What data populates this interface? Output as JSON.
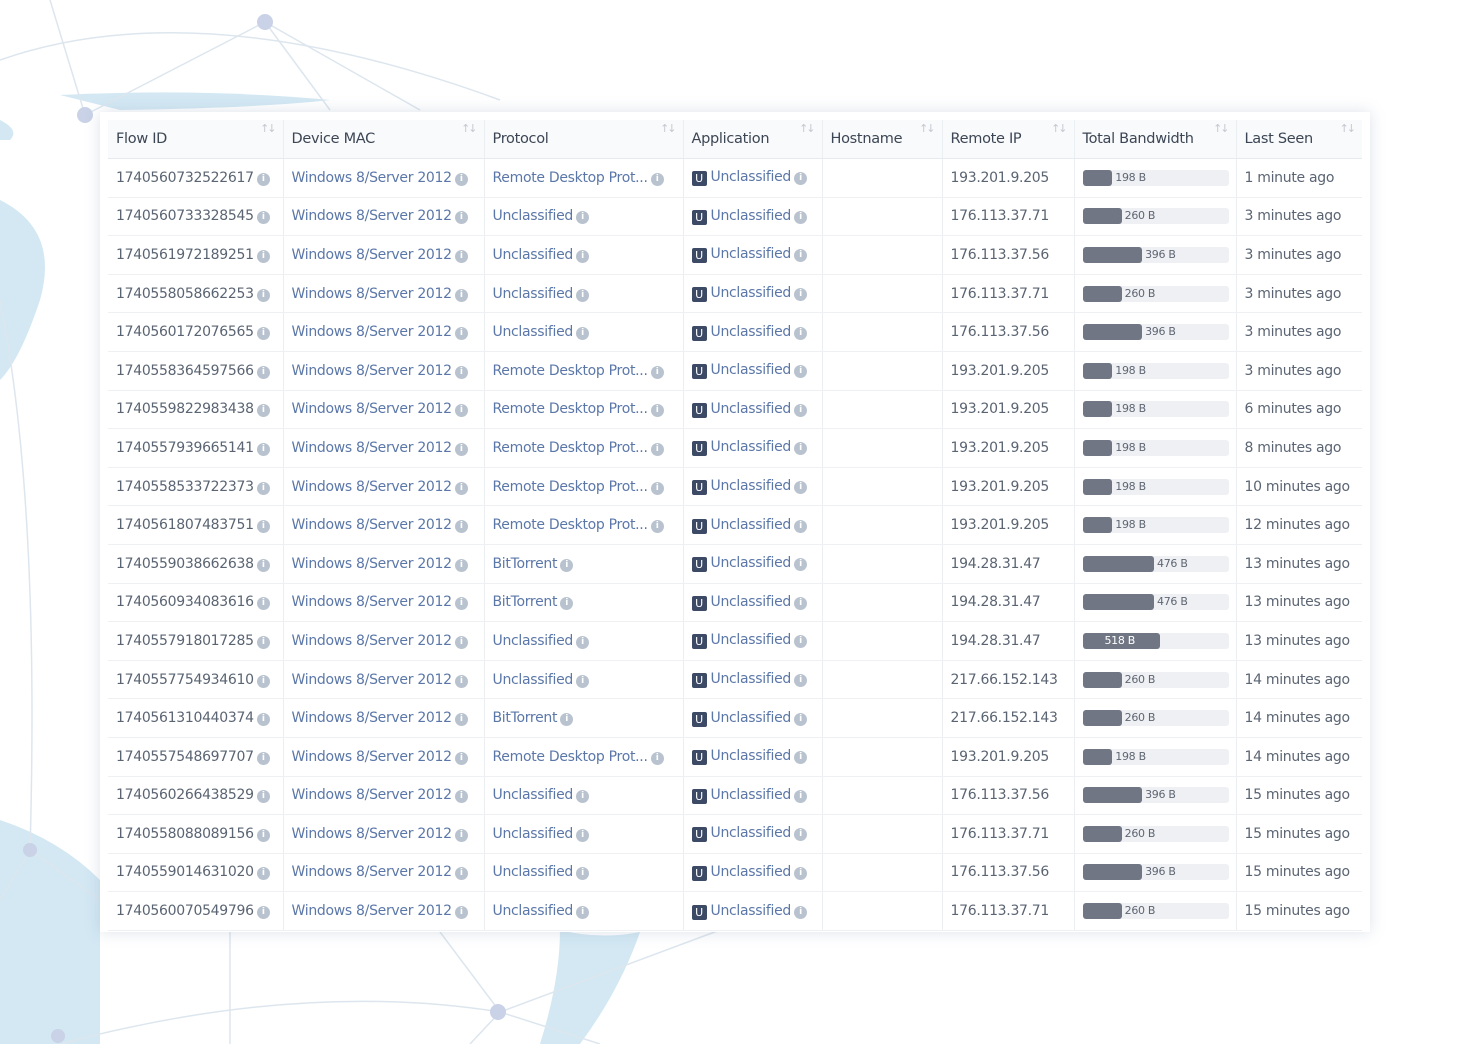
{
  "colors": {
    "link": "#5b77a8",
    "bar": "#707684",
    "app_badge": "#3d4a66"
  },
  "columns": [
    {
      "label": "Flow ID",
      "sort_icon": "sort-icon"
    },
    {
      "label": "Device MAC",
      "sort_icon": "sort-icon"
    },
    {
      "label": "Protocol",
      "sort_icon": "sort-icon"
    },
    {
      "label": "Application",
      "sort_icon": "sort-icon"
    },
    {
      "label": "Hostname",
      "sort_icon": "sort-icon"
    },
    {
      "label": "Remote IP",
      "sort_icon": "sort-icon"
    },
    {
      "label": "Total Bandwidth",
      "sort_icon": "sort-icon"
    },
    {
      "label": "Last Seen",
      "sort_icon": "sort-desc-icon"
    }
  ],
  "app_badge": "U",
  "rows": [
    {
      "flow_id": "1740560732522617",
      "device": "Windows 8/Server 2012",
      "protocol": "Remote Desktop Prot...",
      "application": "Unclassified",
      "hostname": "",
      "remote_ip": "193.201.9.205",
      "bandwidth": "198 B",
      "bw_fill": 0.204,
      "last_seen": "1 minute ago"
    },
    {
      "flow_id": "1740560733328545",
      "device": "Windows 8/Server 2012",
      "protocol": "Unclassified",
      "application": "Unclassified",
      "hostname": "",
      "remote_ip": "176.113.37.71",
      "bandwidth": "260 B",
      "bw_fill": 0.268,
      "last_seen": "3 minutes ago"
    },
    {
      "flow_id": "1740561972189251",
      "device": "Windows 8/Server 2012",
      "protocol": "Unclassified",
      "application": "Unclassified",
      "hostname": "",
      "remote_ip": "176.113.37.56",
      "bandwidth": "396 B",
      "bw_fill": 0.408,
      "last_seen": "3 minutes ago"
    },
    {
      "flow_id": "1740558058662253",
      "device": "Windows 8/Server 2012",
      "protocol": "Unclassified",
      "application": "Unclassified",
      "hostname": "",
      "remote_ip": "176.113.37.71",
      "bandwidth": "260 B",
      "bw_fill": 0.268,
      "last_seen": "3 minutes ago"
    },
    {
      "flow_id": "1740560172076565",
      "device": "Windows 8/Server 2012",
      "protocol": "Unclassified",
      "application": "Unclassified",
      "hostname": "",
      "remote_ip": "176.113.37.56",
      "bandwidth": "396 B",
      "bw_fill": 0.408,
      "last_seen": "3 minutes ago"
    },
    {
      "flow_id": "1740558364597566",
      "device": "Windows 8/Server 2012",
      "protocol": "Remote Desktop Prot...",
      "application": "Unclassified",
      "hostname": "",
      "remote_ip": "193.201.9.205",
      "bandwidth": "198 B",
      "bw_fill": 0.204,
      "last_seen": "3 minutes ago"
    },
    {
      "flow_id": "1740559822983438",
      "device": "Windows 8/Server 2012",
      "protocol": "Remote Desktop Prot...",
      "application": "Unclassified",
      "hostname": "",
      "remote_ip": "193.201.9.205",
      "bandwidth": "198 B",
      "bw_fill": 0.204,
      "last_seen": "6 minutes ago"
    },
    {
      "flow_id": "1740557939665141",
      "device": "Windows 8/Server 2012",
      "protocol": "Remote Desktop Prot...",
      "application": "Unclassified",
      "hostname": "",
      "remote_ip": "193.201.9.205",
      "bandwidth": "198 B",
      "bw_fill": 0.204,
      "last_seen": "8 minutes ago"
    },
    {
      "flow_id": "1740558533722373",
      "device": "Windows 8/Server 2012",
      "protocol": "Remote Desktop Prot...",
      "application": "Unclassified",
      "hostname": "",
      "remote_ip": "193.201.9.205",
      "bandwidth": "198 B",
      "bw_fill": 0.204,
      "last_seen": "10 minutes ago"
    },
    {
      "flow_id": "1740561807483751",
      "device": "Windows 8/Server 2012",
      "protocol": "Remote Desktop Prot...",
      "application": "Unclassified",
      "hostname": "",
      "remote_ip": "193.201.9.205",
      "bandwidth": "198 B",
      "bw_fill": 0.204,
      "last_seen": "12 minutes ago"
    },
    {
      "flow_id": "1740559038662638",
      "device": "Windows 8/Server 2012",
      "protocol": "BitTorrent",
      "application": "Unclassified",
      "hostname": "",
      "remote_ip": "194.28.31.47",
      "bandwidth": "476 B",
      "bw_fill": 0.49,
      "last_seen": "13 minutes ago"
    },
    {
      "flow_id": "1740560934083616",
      "device": "Windows 8/Server 2012",
      "protocol": "BitTorrent",
      "application": "Unclassified",
      "hostname": "",
      "remote_ip": "194.28.31.47",
      "bandwidth": "476 B",
      "bw_fill": 0.49,
      "last_seen": "13 minutes ago"
    },
    {
      "flow_id": "1740557918017285",
      "device": "Windows 8/Server 2012",
      "protocol": "Unclassified",
      "application": "Unclassified",
      "hostname": "",
      "remote_ip": "194.28.31.47",
      "bandwidth": "518 B",
      "bw_fill": 0.534,
      "last_seen": "13 minutes ago"
    },
    {
      "flow_id": "1740557754934610",
      "device": "Windows 8/Server 2012",
      "protocol": "Unclassified",
      "application": "Unclassified",
      "hostname": "",
      "remote_ip": "217.66.152.143",
      "bandwidth": "260 B",
      "bw_fill": 0.268,
      "last_seen": "14 minutes ago"
    },
    {
      "flow_id": "1740561310440374",
      "device": "Windows 8/Server 2012",
      "protocol": "BitTorrent",
      "application": "Unclassified",
      "hostname": "",
      "remote_ip": "217.66.152.143",
      "bandwidth": "260 B",
      "bw_fill": 0.268,
      "last_seen": "14 minutes ago"
    },
    {
      "flow_id": "1740557548697707",
      "device": "Windows 8/Server 2012",
      "protocol": "Remote Desktop Prot...",
      "application": "Unclassified",
      "hostname": "",
      "remote_ip": "193.201.9.205",
      "bandwidth": "198 B",
      "bw_fill": 0.204,
      "last_seen": "14 minutes ago"
    },
    {
      "flow_id": "1740560266438529",
      "device": "Windows 8/Server 2012",
      "protocol": "Unclassified",
      "application": "Unclassified",
      "hostname": "",
      "remote_ip": "176.113.37.56",
      "bandwidth": "396 B",
      "bw_fill": 0.408,
      "last_seen": "15 minutes ago"
    },
    {
      "flow_id": "1740558088089156",
      "device": "Windows 8/Server 2012",
      "protocol": "Unclassified",
      "application": "Unclassified",
      "hostname": "",
      "remote_ip": "176.113.37.71",
      "bandwidth": "260 B",
      "bw_fill": 0.268,
      "last_seen": "15 minutes ago"
    },
    {
      "flow_id": "1740559014631020",
      "device": "Windows 8/Server 2012",
      "protocol": "Unclassified",
      "application": "Unclassified",
      "hostname": "",
      "remote_ip": "176.113.37.56",
      "bandwidth": "396 B",
      "bw_fill": 0.408,
      "last_seen": "15 minutes ago"
    },
    {
      "flow_id": "1740560070549796",
      "device": "Windows 8/Server 2012",
      "protocol": "Unclassified",
      "application": "Unclassified",
      "hostname": "",
      "remote_ip": "176.113.37.71",
      "bandwidth": "260 B",
      "bw_fill": 0.268,
      "last_seen": "15 minutes ago"
    }
  ]
}
